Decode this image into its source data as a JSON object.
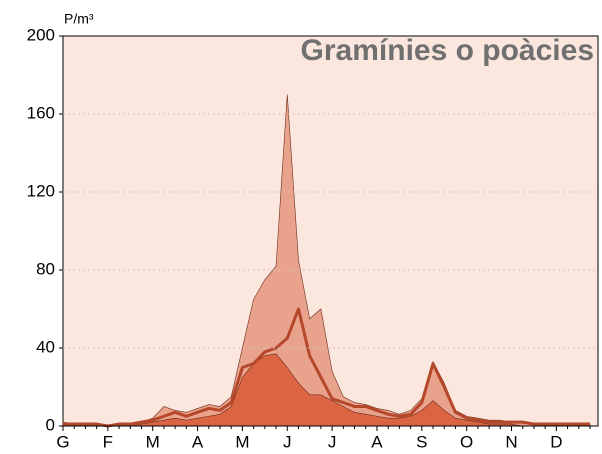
{
  "chart_data": {
    "type": "area",
    "title": "Gramínies o poàcies",
    "y_unit": "P/m³",
    "categories": [
      "G",
      null,
      null,
      null,
      "F",
      null,
      null,
      null,
      "M",
      null,
      null,
      null,
      "A",
      null,
      null,
      null,
      "M",
      null,
      null,
      null,
      "J",
      null,
      null,
      null,
      "J",
      null,
      null,
      null,
      "A",
      null,
      null,
      null,
      "S",
      null,
      null,
      null,
      "O",
      null,
      null,
      null,
      "N",
      null,
      null,
      null,
      "D",
      null,
      null,
      null
    ],
    "series": [
      {
        "kind": "area",
        "color": "#e9a38c",
        "values": [
          2,
          1,
          1,
          1,
          0,
          1,
          1,
          2,
          4,
          10,
          8,
          7,
          9,
          11,
          10,
          15,
          40,
          65,
          75,
          82,
          170,
          85,
          55,
          60,
          28,
          15,
          12,
          11,
          9,
          8,
          6,
          8,
          14,
          33,
          22,
          8,
          5,
          4,
          3,
          3,
          2,
          2,
          1,
          1,
          1,
          1,
          1,
          1
        ]
      },
      {
        "kind": "area",
        "color": "#db6443",
        "values": [
          1,
          0,
          0,
          0,
          0,
          0,
          0,
          1,
          2,
          3,
          4,
          3,
          4,
          5,
          6,
          10,
          25,
          32,
          36,
          37,
          30,
          22,
          16,
          16,
          13,
          10,
          7,
          6,
          5,
          4,
          4,
          5,
          8,
          13,
          8,
          4,
          3,
          2,
          1,
          1,
          1,
          0,
          0,
          0,
          0,
          0,
          0,
          0
        ]
      },
      {
        "kind": "line",
        "color": "#b5472a",
        "values": [
          1,
          1,
          1,
          1,
          0,
          1,
          1,
          2,
          3,
          5,
          7,
          5,
          7,
          9,
          8,
          12,
          30,
          32,
          38,
          40,
          45,
          60,
          36,
          25,
          14,
          12,
          10,
          10,
          8,
          6,
          5,
          6,
          12,
          32,
          20,
          7,
          4,
          3,
          2,
          2,
          2,
          2,
          1,
          1,
          1,
          1,
          1,
          1
        ]
      }
    ],
    "ylim": [
      0,
      200
    ],
    "yticks": [
      0,
      40,
      80,
      120,
      160,
      200
    ],
    "grid": true
  }
}
